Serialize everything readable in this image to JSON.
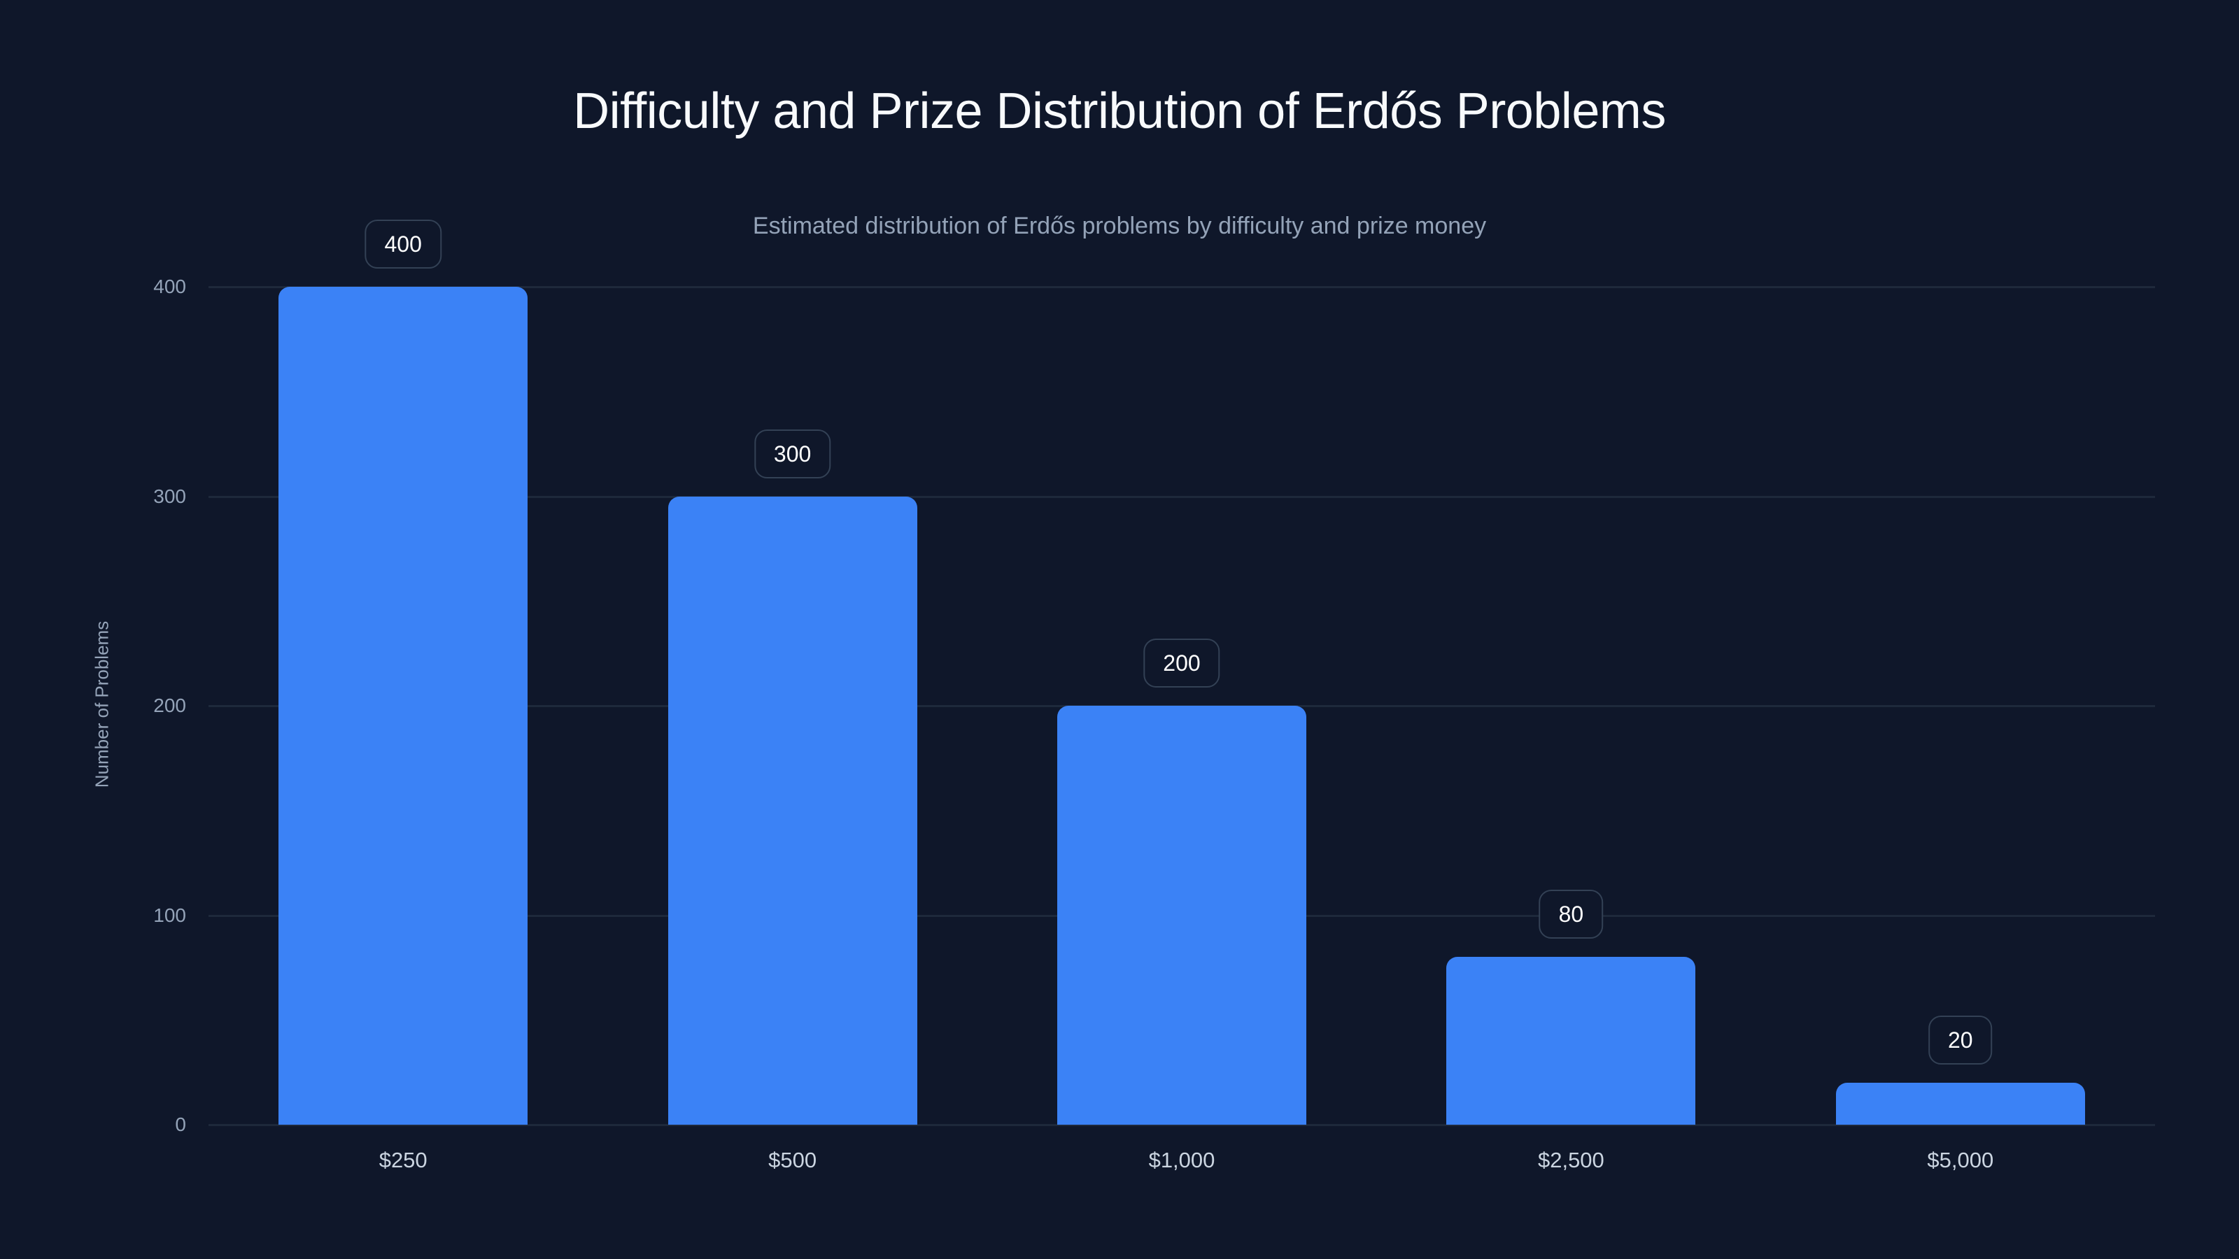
{
  "title": "Difficulty and Prize Distribution of Erdős Problems",
  "subtitle": "Estimated distribution of Erdős problems by difficulty and prize money",
  "colors": {
    "background": "#0f172a",
    "bar": "#3b82f6",
    "gridline": "#1e293b",
    "axis_text": "#94a3b8",
    "badge_border": "#334155"
  },
  "chart_data": {
    "type": "bar",
    "title": "Difficulty and Prize Distribution of Erdős Problems",
    "subtitle": "Estimated distribution of Erdős problems by difficulty and prize money",
    "xlabel": "",
    "ylabel": "Number of Problems",
    "categories": [
      "$250",
      "$500",
      "$1,000",
      "$2,500",
      "$5,000"
    ],
    "values": [
      400,
      300,
      200,
      80,
      20
    ],
    "data_labels": [
      "400",
      "300",
      "200",
      "80",
      "20"
    ],
    "ylim": [
      0,
      400
    ],
    "yticks": [
      "0",
      "100",
      "200",
      "300",
      "400"
    ],
    "grid": true,
    "legend": "none"
  }
}
